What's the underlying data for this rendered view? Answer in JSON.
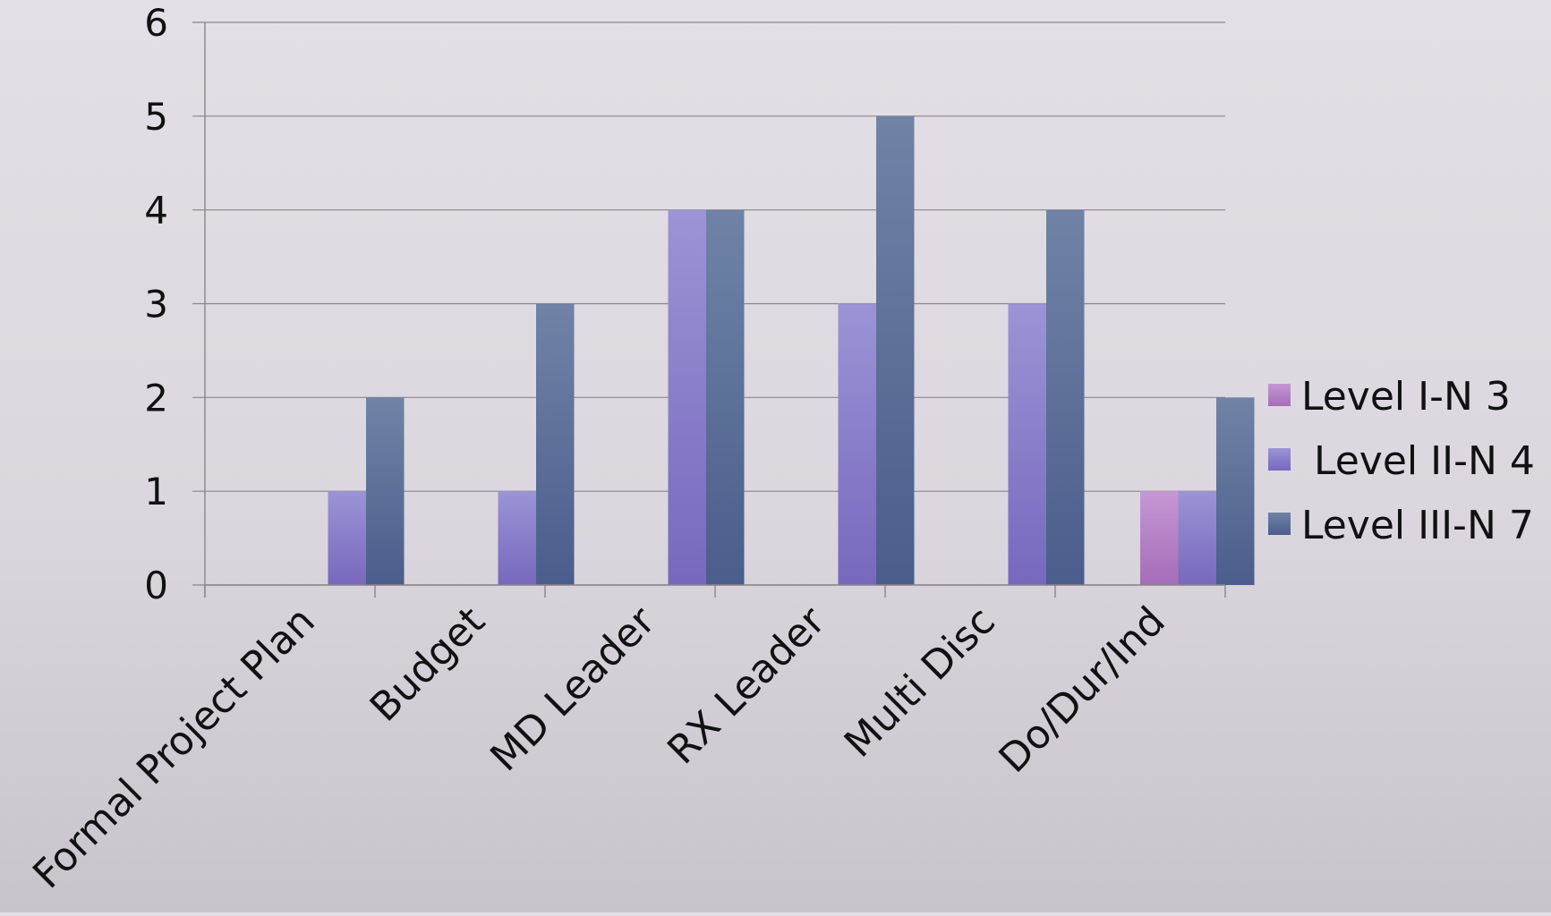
{
  "chart_data": {
    "type": "bar",
    "title": "",
    "xlabel": "",
    "ylabel": "",
    "ylim": [
      0,
      6
    ],
    "yticks": [
      "0",
      "1",
      "2",
      "3",
      "4",
      "5",
      "6"
    ],
    "grid": true,
    "legend_position": "right",
    "categories": [
      "Formal Project Plan",
      "Budget",
      "MD Leader",
      "RX Leader",
      "Multi Disc",
      "Do/Dur/Ind"
    ],
    "series": [
      {
        "name": "Level I-N 3",
        "values": [
          0,
          0,
          0,
          0,
          0,
          1
        ],
        "color": "#b681c6"
      },
      {
        "name": " Level II-N 4",
        "values": [
          1,
          1,
          4,
          3,
          3,
          1
        ],
        "color": "#8a82ca"
      },
      {
        "name": "Level III-N 7",
        "values": [
          2,
          3,
          4,
          5,
          4,
          2
        ],
        "color": "#5d6e98"
      }
    ]
  }
}
